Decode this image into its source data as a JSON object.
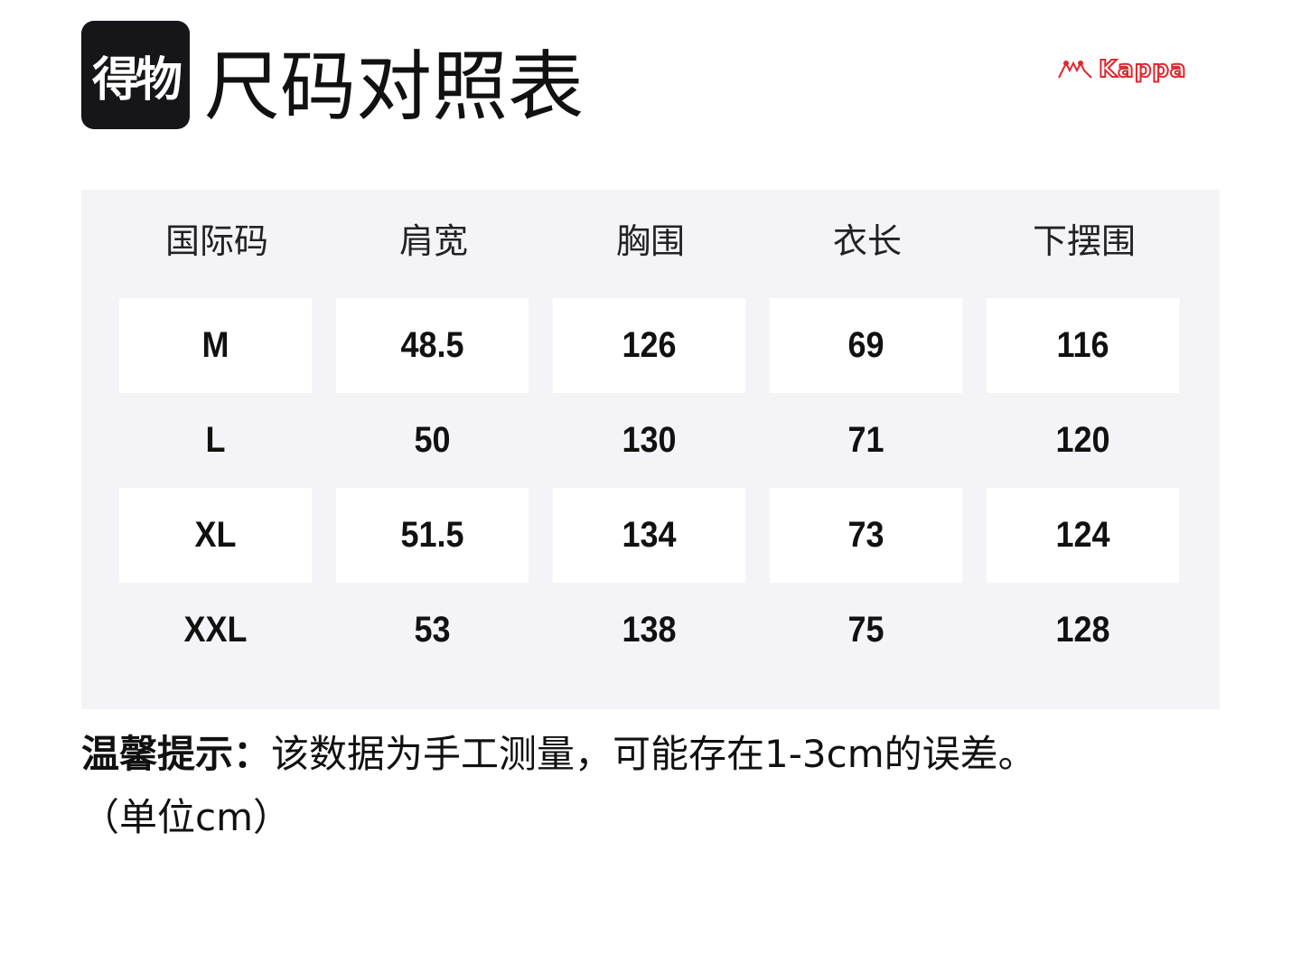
{
  "logo": {
    "text": "得物"
  },
  "title": "尺码对照表",
  "brand": {
    "text": "Kappa",
    "color": "#e0262f"
  },
  "table": {
    "headers": [
      "国际码",
      "肩宽",
      "胸围",
      "衣长",
      "下摆围"
    ],
    "rows": [
      [
        "M",
        "48.5",
        "126",
        "69",
        "116"
      ],
      [
        "L",
        "50",
        "130",
        "71",
        "120"
      ],
      [
        "XL",
        "51.5",
        "134",
        "73",
        "124"
      ],
      [
        "XXL",
        "53",
        "138",
        "75",
        "128"
      ]
    ]
  },
  "note": {
    "label": "温馨提示：",
    "text": "该数据为手工测量，可能存在1-3cm的误差。",
    "unit": "（单位cm）"
  }
}
